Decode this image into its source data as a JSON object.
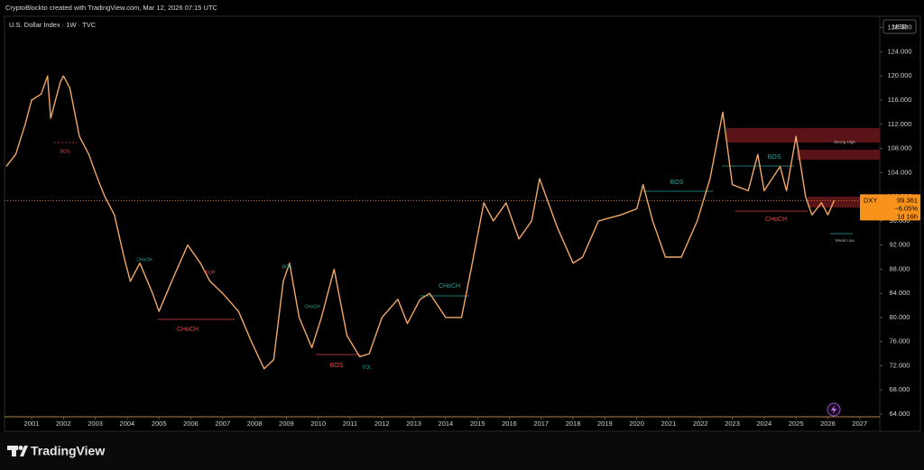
{
  "chart_data": {
    "type": "line",
    "header": "CryptoBlockto created with TradingView.com, Mar 12, 2026 07:15 UTC",
    "title": "U.S. Dollar Index · 1W · TVC",
    "currency": "USD",
    "brand": "TradingView",
    "color": "#f0a868",
    "x": [
      2000.2,
      2000.5,
      2000.8,
      2001.0,
      2001.3,
      2001.5,
      2001.6,
      2001.9,
      2002.0,
      2002.2,
      2002.5,
      2002.8,
      2003.0,
      2003.3,
      2003.6,
      2003.9,
      2004.1,
      2004.4,
      2004.8,
      2005.0,
      2005.4,
      2005.9,
      2006.3,
      2006.6,
      2007.0,
      2007.5,
      2007.9,
      2008.3,
      2008.6,
      2008.9,
      2009.1,
      2009.4,
      2009.8,
      2010.1,
      2010.5,
      2010.9,
      2011.3,
      2011.6,
      2012.0,
      2012.5,
      2012.8,
      2013.2,
      2013.5,
      2014.0,
      2014.5,
      2014.8,
      2015.2,
      2015.5,
      2015.9,
      2016.3,
      2016.7,
      2016.95,
      2017.5,
      2018.0,
      2018.3,
      2018.8,
      2019.5,
      2020.0,
      2020.2,
      2020.5,
      2020.9,
      2021.4,
      2021.9,
      2022.3,
      2022.7,
      2023.0,
      2023.5,
      2023.8,
      2024.0,
      2024.5,
      2024.7,
      2025.0,
      2025.3,
      2025.5,
      2025.8,
      2026.0,
      2026.2
    ],
    "values": [
      105,
      107,
      112,
      116,
      117,
      120,
      113,
      119,
      120,
      118,
      110,
      107,
      104,
      100,
      97,
      90,
      86,
      89,
      84,
      81,
      86,
      92,
      89,
      86,
      84,
      81,
      76,
      71.5,
      73,
      86,
      89,
      80,
      75,
      80,
      88,
      77,
      73.5,
      74,
      80,
      83,
      79,
      83,
      84,
      80,
      80,
      88,
      99,
      96,
      99,
      93,
      96,
      103,
      95,
      89,
      90,
      96,
      97,
      98,
      102,
      96,
      90,
      90,
      96,
      103,
      114,
      102,
      101,
      107,
      101,
      105,
      101,
      110,
      100,
      97,
      99,
      97,
      99.4
    ],
    "xlim": [
      2000.15,
      2027.63
    ],
    "xticks": [
      2001,
      2002,
      2003,
      2004,
      2005,
      2006,
      2007,
      2008,
      2009,
      2010,
      2011,
      2012,
      2013,
      2014,
      2015,
      2016,
      2017,
      2018,
      2019,
      2020,
      2021,
      2022,
      2023,
      2024,
      2025,
      2026,
      2027
    ],
    "ylim": [
      63.55,
      129.9
    ],
    "yticks": [
      {
        "value": 64,
        "label": "64.000"
      },
      {
        "value": 68,
        "label": "68.000"
      },
      {
        "value": 72,
        "label": "72.000"
      },
      {
        "value": 76,
        "label": "76.000"
      },
      {
        "value": 80,
        "label": "80.000"
      },
      {
        "value": 84,
        "label": "84.000"
      },
      {
        "value": 88,
        "label": "88.000"
      },
      {
        "value": 92,
        "label": "92.000"
      },
      {
        "value": 96,
        "label": "96.000"
      },
      {
        "value": 100,
        "label": "100.000"
      },
      {
        "value": 104,
        "label": "104.000"
      },
      {
        "value": 108,
        "label": "108.000"
      },
      {
        "value": 112,
        "label": "112.000"
      },
      {
        "value": 116,
        "label": "116.000"
      },
      {
        "value": 120,
        "label": "120.000"
      },
      {
        "value": 124,
        "label": "124.000"
      },
      {
        "value": 128,
        "label": "128.000"
      }
    ],
    "last_price": 99.361,
    "symbol": "DXY",
    "change": "−6.05%",
    "countdown": "1d 16h",
    "annotations": [
      {
        "text": "CHoCH",
        "color": "#e84545"
      },
      {
        "text": "BOS",
        "color": "#e84545"
      },
      {
        "text": "CHoCH",
        "color": "#26a69a"
      },
      {
        "text": "BOS",
        "color": "#26a69a"
      },
      {
        "text": "BOS",
        "color": "#26a69a"
      },
      {
        "text": "CHoCH",
        "color": "#e84545"
      },
      {
        "text": "Strong High",
        "color": "#b0b0b0"
      },
      {
        "text": "Weak Low",
        "color": "#b0b0b0"
      },
      {
        "text": "BOS",
        "color": "#e84545"
      },
      {
        "text": "CHoCH",
        "color": "#26a69a"
      },
      {
        "text": "EQH",
        "color": "#e84545"
      },
      {
        "text": "BOS",
        "color": "#26a69a"
      },
      {
        "text": "CHoCH",
        "color": "#26a69a"
      },
      {
        "text": "EQL",
        "color": "#26a69a"
      }
    ]
  }
}
